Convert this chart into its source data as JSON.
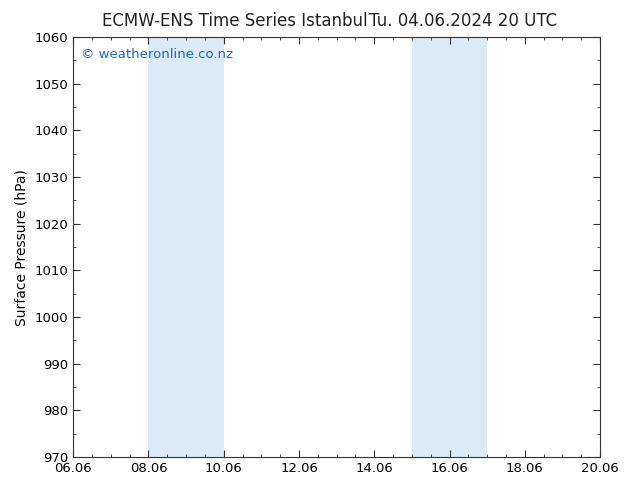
{
  "title_left": "ECMW-ENS Time Series Istanbul",
  "title_right": "Tu. 04.06.2024 20 UTC",
  "ylabel": "Surface Pressure (hPa)",
  "ylim": [
    970,
    1060
  ],
  "yticks": [
    970,
    980,
    990,
    1000,
    1010,
    1020,
    1030,
    1040,
    1050,
    1060
  ],
  "xlabel_ticks": [
    "06.06",
    "08.06",
    "10.06",
    "12.06",
    "14.06",
    "16.06",
    "18.06",
    "20.06"
  ],
  "x_tick_positions": [
    0,
    2,
    4,
    6,
    8,
    10,
    12,
    14
  ],
  "xlim": [
    0,
    14
  ],
  "shaded_bands": [
    {
      "x_start": 2.0,
      "x_end": 4.0
    },
    {
      "x_start": 9.0,
      "x_end": 11.0
    }
  ],
  "band_color": "#daeaf7",
  "watermark_text": "© weatheronline.co.nz",
  "watermark_color": "#1e6abf",
  "background_color": "#ffffff",
  "plot_bg_color": "#ffffff",
  "title_fontsize": 12,
  "label_fontsize": 10,
  "tick_fontsize": 9.5,
  "watermark_fontsize": 9.5,
  "spine_color": "#333333",
  "tick_color": "#333333"
}
